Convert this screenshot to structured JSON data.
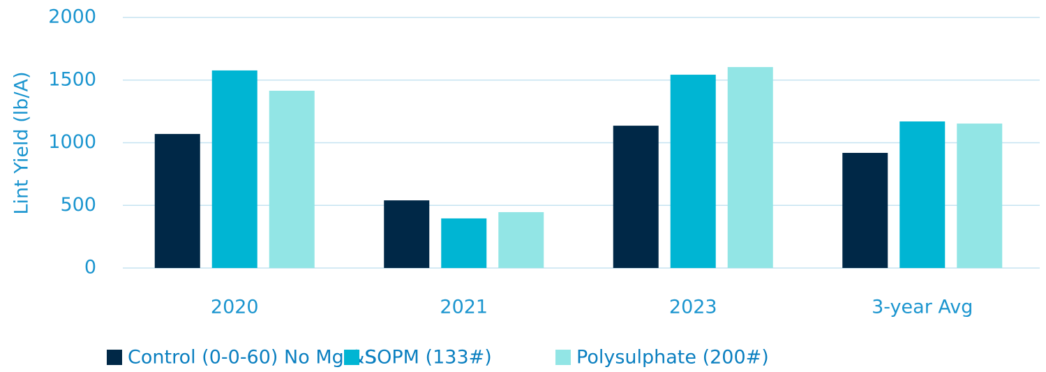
{
  "chart_data": {
    "type": "bar",
    "y_label": "Lint Yield (lb/A)",
    "categories": [
      "2020",
      "2021",
      "2023",
      "3-year Avg"
    ],
    "series": [
      {
        "name": "Control (0-0-60) No Mg &S",
        "color": "#002847",
        "values": [
          1070,
          540,
          1136,
          919
        ]
      },
      {
        "name": "SOPM (133#)",
        "color": "#00b5d3",
        "values": [
          1577,
          396,
          1543,
          1170
        ]
      },
      {
        "name": "Polysulphate (200#)",
        "color": "#92e5e5",
        "values": [
          1415,
          446,
          1604,
          1153
        ]
      }
    ],
    "ylim": [
      0,
      2000
    ],
    "yticks": [
      0,
      500,
      1000,
      1500,
      2000
    ],
    "grid": true,
    "legend": "bottom"
  }
}
